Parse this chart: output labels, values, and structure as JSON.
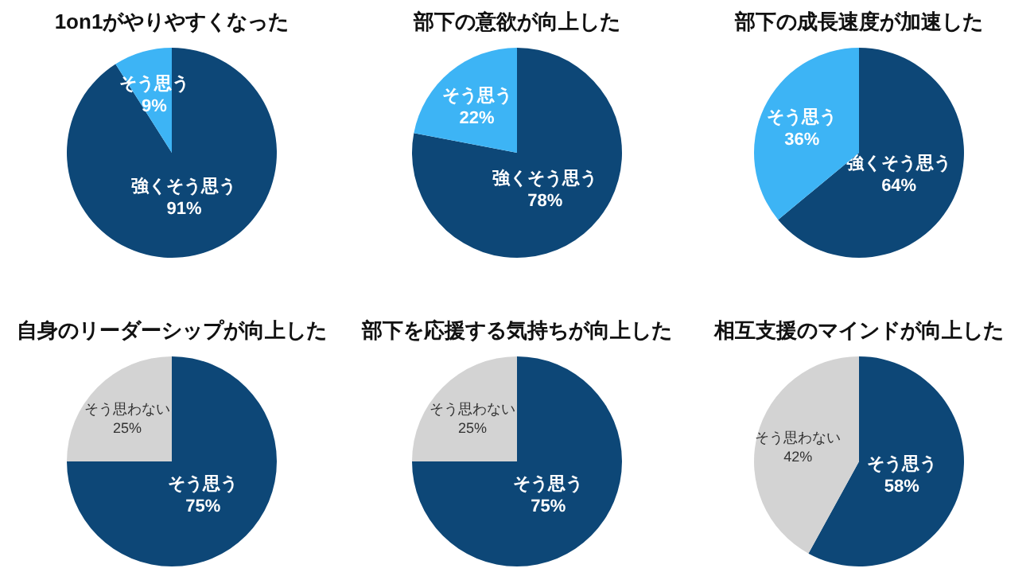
{
  "chart_data": [
    {
      "type": "pie",
      "title": "1on1がやりやすくなった",
      "categories": [
        "強くそう思う",
        "そう思う"
      ],
      "values": [
        91,
        9
      ],
      "colors": [
        "#0d4777",
        "#3db4f5"
      ],
      "value_labels": [
        "91%",
        "9%"
      ]
    },
    {
      "type": "pie",
      "title": "部下の意欲が向上した",
      "categories": [
        "強くそう思う",
        "そう思う"
      ],
      "values": [
        78,
        22
      ],
      "colors": [
        "#0d4777",
        "#3db4f5"
      ],
      "value_labels": [
        "78%",
        "22%"
      ]
    },
    {
      "type": "pie",
      "title": "部下の成長速度が加速した",
      "categories": [
        "強くそう思う",
        "そう思う"
      ],
      "values": [
        64,
        36
      ],
      "colors": [
        "#0d4777",
        "#3db4f5"
      ],
      "value_labels": [
        "64%",
        "36%"
      ]
    },
    {
      "type": "pie",
      "title": "自身のリーダーシップが向上した",
      "categories": [
        "そう思う",
        "そう思わない"
      ],
      "values": [
        75,
        25
      ],
      "colors": [
        "#0d4777",
        "#d3d3d3"
      ],
      "value_labels": [
        "75%",
        "25%"
      ]
    },
    {
      "type": "pie",
      "title": "部下を応援する気持ちが向上した",
      "categories": [
        "そう思う",
        "そう思わない"
      ],
      "values": [
        75,
        25
      ],
      "colors": [
        "#0d4777",
        "#d3d3d3"
      ],
      "value_labels": [
        "75%",
        "25%"
      ]
    },
    {
      "type": "pie",
      "title": "相互支援のマインドが向上した",
      "categories": [
        "そう思う",
        "そう思わない"
      ],
      "values": [
        58,
        42
      ],
      "colors": [
        "#0d4777",
        "#d3d3d3"
      ],
      "value_labels": [
        "58%",
        "42%"
      ]
    }
  ]
}
